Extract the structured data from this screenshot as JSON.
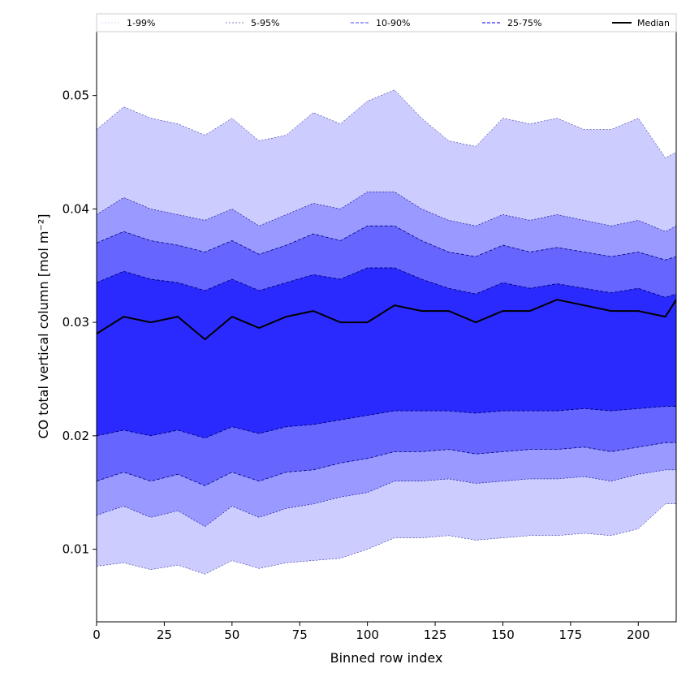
{
  "chart_data": {
    "type": "area",
    "xlabel": "Binned row index",
    "ylabel": "CO total vertical column [mol m⁻²]",
    "xlim": [
      0,
      214
    ],
    "ylim": [
      0.0036,
      0.0557
    ],
    "x_ticks": [
      "0",
      "25",
      "50",
      "75",
      "100",
      "125",
      "150",
      "175",
      "200"
    ],
    "y_ticks": [
      "0.01",
      "0.02",
      "0.03",
      "0.04",
      "0.05"
    ],
    "grid": false,
    "legend_placement": "top",
    "colors": {
      "band_1_99": "#ccccff",
      "band_5_95": "#9999ff",
      "band_10_90": "#6666ff",
      "band_25_75": "#2a2aff",
      "median": "#000000",
      "edge": "#000080"
    },
    "x": [
      0,
      10,
      20,
      30,
      40,
      50,
      60,
      70,
      80,
      90,
      100,
      110,
      120,
      130,
      140,
      150,
      160,
      170,
      180,
      190,
      200,
      210,
      214
    ],
    "series": [
      {
        "name": "1-99%",
        "lower": [
          0.0085,
          0.0088,
          0.0082,
          0.0086,
          0.0078,
          0.009,
          0.0083,
          0.0088,
          0.009,
          0.0092,
          0.01,
          0.011,
          0.011,
          0.0112,
          0.0108,
          0.011,
          0.0112,
          0.0112,
          0.0114,
          0.0112,
          0.0118,
          0.014,
          0.014
        ],
        "upper": [
          0.047,
          0.049,
          0.048,
          0.0475,
          0.0465,
          0.048,
          0.046,
          0.0465,
          0.0485,
          0.0475,
          0.0495,
          0.0505,
          0.048,
          0.046,
          0.0455,
          0.048,
          0.0475,
          0.048,
          0.047,
          0.047,
          0.048,
          0.0445,
          0.045
        ]
      },
      {
        "name": "5-95%",
        "lower": [
          0.013,
          0.0138,
          0.0128,
          0.0134,
          0.012,
          0.0138,
          0.0128,
          0.0136,
          0.014,
          0.0146,
          0.015,
          0.016,
          0.016,
          0.0162,
          0.0158,
          0.016,
          0.0162,
          0.0162,
          0.0164,
          0.016,
          0.0166,
          0.017,
          0.017
        ],
        "upper": [
          0.0395,
          0.041,
          0.04,
          0.0395,
          0.039,
          0.04,
          0.0385,
          0.0395,
          0.0405,
          0.04,
          0.0415,
          0.0415,
          0.04,
          0.039,
          0.0385,
          0.0395,
          0.039,
          0.0395,
          0.039,
          0.0385,
          0.039,
          0.038,
          0.0385
        ]
      },
      {
        "name": "10-90%",
        "lower": [
          0.016,
          0.0168,
          0.016,
          0.0166,
          0.0156,
          0.0168,
          0.016,
          0.0168,
          0.017,
          0.0176,
          0.018,
          0.0186,
          0.0186,
          0.0188,
          0.0184,
          0.0186,
          0.0188,
          0.0188,
          0.019,
          0.0186,
          0.019,
          0.0194,
          0.0194
        ],
        "upper": [
          0.037,
          0.038,
          0.0372,
          0.0368,
          0.0362,
          0.0372,
          0.036,
          0.0368,
          0.0378,
          0.0372,
          0.0385,
          0.0385,
          0.0372,
          0.0362,
          0.0358,
          0.0368,
          0.0362,
          0.0366,
          0.0362,
          0.0358,
          0.0362,
          0.0355,
          0.0358
        ]
      },
      {
        "name": "25-75%",
        "lower": [
          0.02,
          0.0205,
          0.02,
          0.0205,
          0.0198,
          0.0208,
          0.0202,
          0.0208,
          0.021,
          0.0214,
          0.0218,
          0.0222,
          0.0222,
          0.0222,
          0.022,
          0.0222,
          0.0222,
          0.0222,
          0.0224,
          0.0222,
          0.0224,
          0.0226,
          0.0226
        ],
        "upper": [
          0.0335,
          0.0345,
          0.0338,
          0.0335,
          0.0328,
          0.0338,
          0.0328,
          0.0335,
          0.0342,
          0.0338,
          0.0348,
          0.0348,
          0.0338,
          0.033,
          0.0325,
          0.0335,
          0.033,
          0.0334,
          0.033,
          0.0326,
          0.033,
          0.0322,
          0.0325
        ]
      },
      {
        "name": "Median",
        "values": [
          0.029,
          0.0305,
          0.03,
          0.0305,
          0.0285,
          0.0305,
          0.0295,
          0.0305,
          0.031,
          0.03,
          0.03,
          0.0315,
          0.031,
          0.031,
          0.03,
          0.031,
          0.031,
          0.032,
          0.0315,
          0.031,
          0.031,
          0.0305,
          0.032
        ]
      }
    ]
  }
}
